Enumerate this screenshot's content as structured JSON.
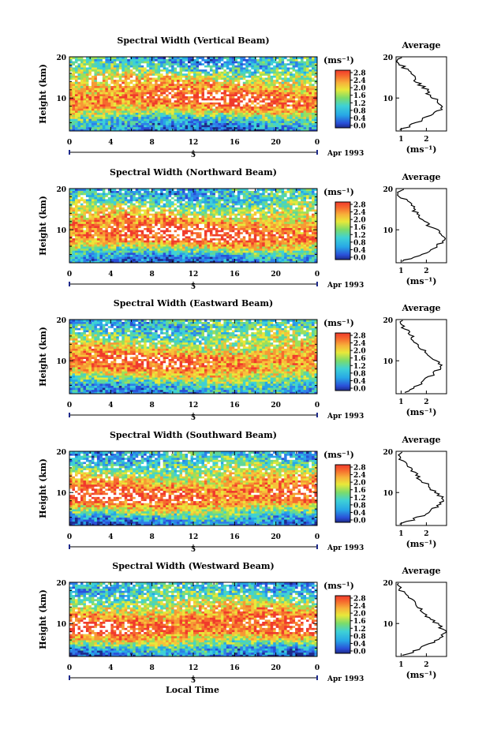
{
  "figure": {
    "xlabel": "Local Time",
    "date_label": "Apr 1993",
    "date_tick": "5",
    "ylabel": "Height (km)",
    "cbar_unit": "(ms⁻¹)",
    "avg_title": "Average",
    "avg_xlabel": "(ms⁻¹)"
  },
  "chart_data": [
    {
      "type": "heatmap",
      "title": "Spectral Width (Vertical Beam)",
      "x_ticks": [
        "0",
        "4",
        "8",
        "12",
        "16",
        "20",
        "0"
      ],
      "xlim": [
        0,
        24
      ],
      "y_ticks": [
        "20",
        "10"
      ],
      "ylim": [
        2,
        20
      ],
      "colorbar": {
        "ticks": [
          "2.8",
          "2.4",
          "2.0",
          "1.6",
          "1.2",
          "0.8",
          "0.4",
          "0.0"
        ],
        "range": [
          0,
          2.8
        ]
      },
      "average": {
        "x_ticks": [
          "1",
          "2"
        ],
        "xlim": [
          0.8,
          2.8
        ],
        "y_ticks": [
          "20",
          "10"
        ],
        "profile": [
          [
            2.5,
            1.0
          ],
          [
            3,
            1.3
          ],
          [
            4,
            1.6
          ],
          [
            5,
            1.9
          ],
          [
            6,
            2.2
          ],
          [
            7,
            2.5
          ],
          [
            8,
            2.6
          ],
          [
            9,
            2.5
          ],
          [
            10,
            2.3
          ],
          [
            11,
            2.1
          ],
          [
            12,
            2.0
          ],
          [
            13,
            1.8
          ],
          [
            14,
            1.6
          ],
          [
            15,
            1.5
          ],
          [
            16,
            1.4
          ],
          [
            17,
            1.2
          ],
          [
            18,
            1.0
          ],
          [
            19,
            0.9
          ],
          [
            19.8,
            1.0
          ]
        ]
      },
      "z_profile": [
        [
          2,
          0.6
        ],
        [
          4,
          0.8
        ],
        [
          6,
          1.5
        ],
        [
          8,
          2.3
        ],
        [
          10,
          2.5
        ],
        [
          12,
          2.2
        ],
        [
          14,
          1.9
        ],
        [
          16,
          1.5
        ],
        [
          18,
          1.0
        ],
        [
          20,
          0.9
        ]
      ]
    },
    {
      "type": "heatmap",
      "title": "Spectral Width (Northward Beam)",
      "x_ticks": [
        "0",
        "4",
        "8",
        "12",
        "16",
        "20",
        "0"
      ],
      "xlim": [
        0,
        24
      ],
      "y_ticks": [
        "20",
        "10"
      ],
      "ylim": [
        2,
        20
      ],
      "colorbar": {
        "ticks": [
          "2.8",
          "2.4",
          "2.0",
          "1.6",
          "1.2",
          "0.8",
          "0.4",
          "0.0"
        ],
        "range": [
          0,
          2.8
        ]
      },
      "average": {
        "x_ticks": [
          "1",
          "2"
        ],
        "xlim": [
          0.8,
          2.8
        ],
        "y_ticks": [
          "20",
          "10"
        ],
        "profile": [
          [
            2.5,
            1.1
          ],
          [
            3,
            1.4
          ],
          [
            4,
            1.8
          ],
          [
            5,
            2.1
          ],
          [
            6,
            2.4
          ],
          [
            7,
            2.6
          ],
          [
            8,
            2.7
          ],
          [
            9,
            2.6
          ],
          [
            10,
            2.4
          ],
          [
            11,
            2.1
          ],
          [
            12,
            1.9
          ],
          [
            13,
            1.8
          ],
          [
            14,
            1.6
          ],
          [
            15,
            1.5
          ],
          [
            16,
            1.4
          ],
          [
            17,
            1.2
          ],
          [
            18,
            1.0
          ],
          [
            19,
            0.9
          ],
          [
            19.8,
            1.0
          ]
        ]
      },
      "z_profile": [
        [
          2,
          0.5
        ],
        [
          4,
          0.9
        ],
        [
          6,
          1.8
        ],
        [
          8,
          2.6
        ],
        [
          10,
          2.6
        ],
        [
          12,
          2.1
        ],
        [
          14,
          1.8
        ],
        [
          16,
          1.4
        ],
        [
          18,
          1.0
        ],
        [
          20,
          0.9
        ]
      ]
    },
    {
      "type": "heatmap",
      "title": "Spectral Width (Eastward Beam)",
      "x_ticks": [
        "0",
        "4",
        "8",
        "12",
        "16",
        "20",
        "0"
      ],
      "xlim": [
        0,
        24
      ],
      "y_ticks": [
        "20",
        "10"
      ],
      "ylim": [
        2,
        20
      ],
      "colorbar": {
        "ticks": [
          "2.8",
          "2.4",
          "2.0",
          "1.6",
          "1.2",
          "0.8",
          "0.4",
          "0.0"
        ],
        "range": [
          0,
          2.8
        ]
      },
      "average": {
        "x_ticks": [
          "1",
          "2"
        ],
        "xlim": [
          0.8,
          2.8
        ],
        "y_ticks": [
          "20",
          "10"
        ],
        "profile": [
          [
            2.5,
            1.2
          ],
          [
            3,
            1.4
          ],
          [
            4,
            1.6
          ],
          [
            5,
            1.9
          ],
          [
            6,
            2.1
          ],
          [
            7,
            2.3
          ],
          [
            8,
            2.5
          ],
          [
            9,
            2.6
          ],
          [
            10,
            2.4
          ],
          [
            11,
            2.2
          ],
          [
            12,
            2.0
          ],
          [
            13,
            1.8
          ],
          [
            14,
            1.6
          ],
          [
            15,
            1.4
          ],
          [
            16,
            1.5
          ],
          [
            17,
            1.3
          ],
          [
            18,
            1.1
          ],
          [
            19,
            1.0
          ],
          [
            19.8,
            1.1
          ]
        ]
      },
      "z_profile": [
        [
          2,
          0.7
        ],
        [
          4,
          1.0
        ],
        [
          6,
          1.6
        ],
        [
          8,
          2.2
        ],
        [
          10,
          2.5
        ],
        [
          12,
          2.1
        ],
        [
          14,
          1.7
        ],
        [
          16,
          1.4
        ],
        [
          18,
          1.1
        ],
        [
          20,
          1.0
        ]
      ]
    },
    {
      "type": "heatmap",
      "title": "Spectral Width (Southward Beam)",
      "x_ticks": [
        "0",
        "4",
        "8",
        "12",
        "16",
        "20",
        "0"
      ],
      "xlim": [
        0,
        24
      ],
      "y_ticks": [
        "20",
        "10"
      ],
      "ylim": [
        2,
        20
      ],
      "colorbar": {
        "ticks": [
          "2.8",
          "2.4",
          "2.0",
          "1.6",
          "1.2",
          "0.8",
          "0.4",
          "0.0"
        ],
        "range": [
          0,
          2.8
        ]
      },
      "average": {
        "x_ticks": [
          "1",
          "2"
        ],
        "xlim": [
          0.8,
          2.8
        ],
        "y_ticks": [
          "20",
          "10"
        ],
        "profile": [
          [
            2.5,
            1.0
          ],
          [
            3,
            1.3
          ],
          [
            4,
            1.7
          ],
          [
            5,
            2.0
          ],
          [
            6,
            2.3
          ],
          [
            7,
            2.5
          ],
          [
            8,
            2.6
          ],
          [
            9,
            2.6
          ],
          [
            10,
            2.4
          ],
          [
            11,
            2.2
          ],
          [
            12,
            2.0
          ],
          [
            13,
            1.8
          ],
          [
            14,
            1.6
          ],
          [
            15,
            1.5
          ],
          [
            16,
            1.4
          ],
          [
            17,
            1.2
          ],
          [
            18,
            1.0
          ],
          [
            19,
            0.9
          ],
          [
            19.8,
            1.0
          ]
        ]
      },
      "z_profile": [
        [
          2,
          0.5
        ],
        [
          4,
          0.9
        ],
        [
          6,
          1.7
        ],
        [
          8,
          2.5
        ],
        [
          10,
          2.6
        ],
        [
          12,
          2.2
        ],
        [
          14,
          1.8
        ],
        [
          16,
          1.4
        ],
        [
          18,
          1.0
        ],
        [
          20,
          0.9
        ]
      ]
    },
    {
      "type": "heatmap",
      "title": "Spectral Width (Westward Beam)",
      "x_ticks": [
        "0",
        "4",
        "8",
        "12",
        "16",
        "20",
        "0"
      ],
      "xlim": [
        0,
        24
      ],
      "y_ticks": [
        "20",
        "10"
      ],
      "ylim": [
        2,
        20
      ],
      "colorbar": {
        "ticks": [
          "2.8",
          "2.4",
          "2.0",
          "1.6",
          "1.2",
          "0.8",
          "0.4",
          "0.0"
        ],
        "range": [
          0,
          2.8
        ]
      },
      "average": {
        "x_ticks": [
          "1",
          "2"
        ],
        "xlim": [
          0.8,
          2.8
        ],
        "y_ticks": [
          "20",
          "10"
        ],
        "profile": [
          [
            2.5,
            1.1
          ],
          [
            3,
            1.4
          ],
          [
            4,
            1.8
          ],
          [
            5,
            2.1
          ],
          [
            6,
            2.4
          ],
          [
            7,
            2.6
          ],
          [
            8,
            2.7
          ],
          [
            9,
            2.6
          ],
          [
            10,
            2.4
          ],
          [
            11,
            2.2
          ],
          [
            12,
            2.0
          ],
          [
            13,
            1.8
          ],
          [
            14,
            1.7
          ],
          [
            15,
            1.5
          ],
          [
            16,
            1.4
          ],
          [
            17,
            1.2
          ],
          [
            18,
            1.0
          ],
          [
            19,
            0.9
          ],
          [
            19.8,
            1.0
          ]
        ]
      },
      "z_profile": [
        [
          2,
          0.5
        ],
        [
          4,
          0.9
        ],
        [
          6,
          1.8
        ],
        [
          8,
          2.5
        ],
        [
          10,
          2.6
        ],
        [
          12,
          2.2
        ],
        [
          14,
          1.8
        ],
        [
          16,
          1.4
        ],
        [
          18,
          1.0
        ],
        [
          20,
          0.9
        ]
      ]
    }
  ]
}
